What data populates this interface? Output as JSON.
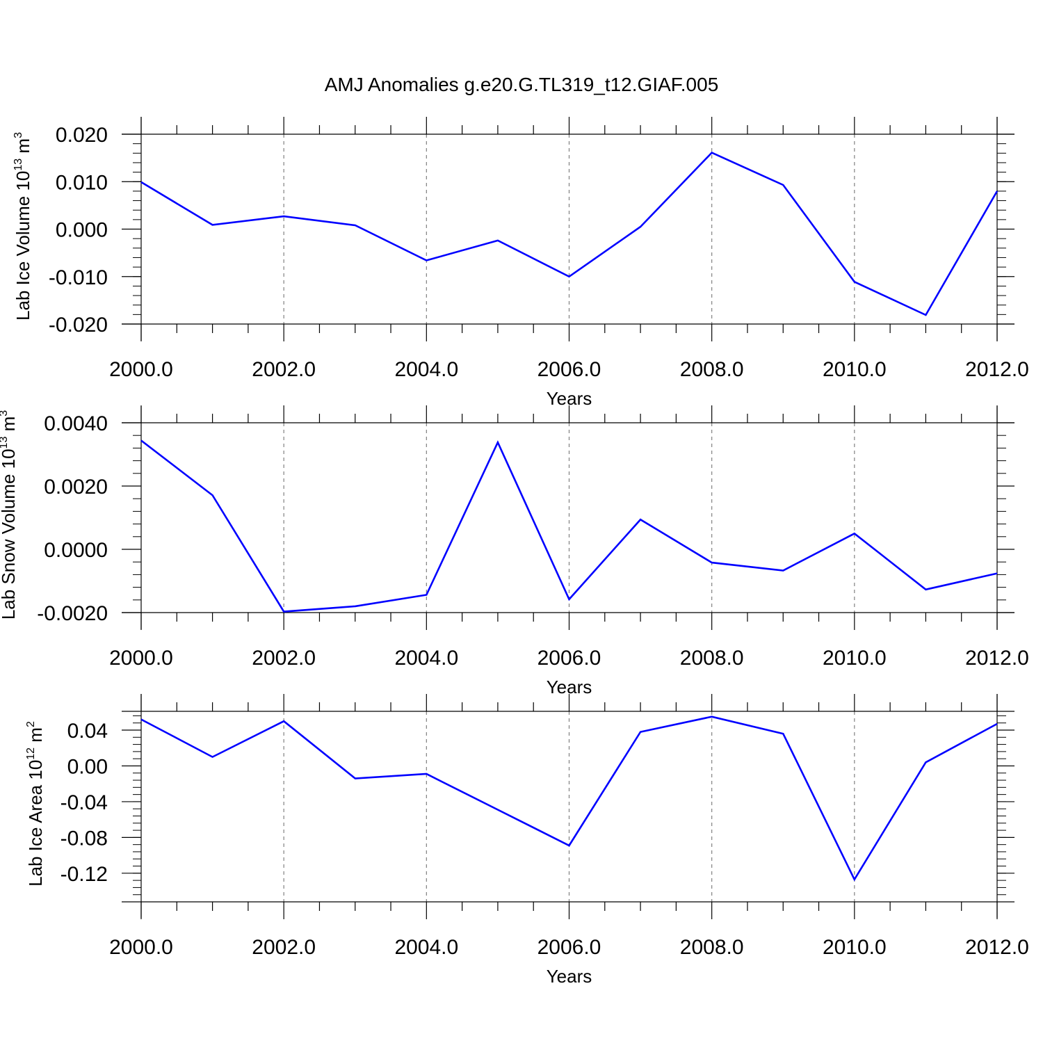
{
  "title": "AMJ Anomalies g.e20.G.TL319_t12.GIAF.005",
  "colors": {
    "series": "#0000ff",
    "axis": "#000000",
    "grid": "#808080"
  },
  "chart_data": [
    {
      "type": "line",
      "xlabel": "Years",
      "ylabel_text": "Lab Ice Volume 10",
      "ylabel_exp": "13",
      "ylabel_unit": " m",
      "ylabel_unit_exp": "3",
      "xlim": [
        2000,
        2012
      ],
      "ylim": [
        -0.02,
        0.02
      ],
      "x_ticks": [
        "2000.0",
        "2002.0",
        "2004.0",
        "2006.0",
        "2008.0",
        "2010.0",
        "2012.0"
      ],
      "y_ticks": [
        0.02,
        0.01,
        0.0,
        -0.01,
        -0.02
      ],
      "y_tick_labels": [
        "0.020",
        "0.010",
        "0.000",
        "-0.010",
        "-0.020"
      ],
      "grid": "vertical dashed",
      "x": [
        2000,
        2001,
        2002,
        2003,
        2004,
        2005,
        2006,
        2007,
        2008,
        2009,
        2010,
        2011,
        2012
      ],
      "values": [
        0.0099,
        0.0009,
        0.0027,
        0.0008,
        -0.0066,
        -0.0024,
        -0.01,
        0.0005,
        0.0161,
        0.0093,
        -0.0111,
        -0.0181,
        0.008
      ]
    },
    {
      "type": "line",
      "xlabel": "Years",
      "ylabel_text": "Lab Snow Volume 10",
      "ylabel_exp": "13",
      "ylabel_unit": " m",
      "ylabel_unit_exp": "3",
      "xlim": [
        2000,
        2012
      ],
      "ylim": [
        -0.002,
        0.004
      ],
      "x_ticks": [
        "2000.0",
        "2002.0",
        "2004.0",
        "2006.0",
        "2008.0",
        "2010.0",
        "2012.0"
      ],
      "y_ticks": [
        0.004,
        0.002,
        0.0,
        -0.002
      ],
      "y_tick_labels": [
        "0.0040",
        "0.0020",
        "0.0000",
        "-0.0020"
      ],
      "grid": "vertical dashed",
      "x": [
        2000,
        2001,
        2002,
        2003,
        2004,
        2005,
        2006,
        2007,
        2008,
        2009,
        2010,
        2011,
        2012
      ],
      "values": [
        0.00344,
        0.00171,
        -0.00197,
        -0.0018,
        -0.00144,
        0.00338,
        -0.00158,
        0.00094,
        -0.00042,
        -0.00067,
        0.0005,
        -0.00127,
        -0.00076
      ]
    },
    {
      "type": "line",
      "xlabel": "Years",
      "ylabel_text": "Lab Ice Area 10",
      "ylabel_exp": "12",
      "ylabel_unit": " m",
      "ylabel_unit_exp": "2",
      "xlim": [
        2000,
        2012
      ],
      "ylim": [
        -0.152,
        0.061
      ],
      "x_ticks": [
        "2000.0",
        "2002.0",
        "2004.0",
        "2006.0",
        "2008.0",
        "2010.0",
        "2012.0"
      ],
      "y_ticks": [
        0.04,
        0.0,
        -0.04,
        -0.08,
        -0.12
      ],
      "y_tick_labels": [
        "0.04",
        "0.00",
        "-0.04",
        "-0.08",
        "-0.12"
      ],
      "grid": "vertical dashed",
      "x": [
        2000,
        2001,
        2002,
        2003,
        2004,
        2005,
        2006,
        2007,
        2008,
        2009,
        2010,
        2011,
        2012
      ],
      "values": [
        0.052,
        0.01,
        0.05,
        -0.014,
        -0.009,
        -0.049,
        -0.089,
        0.038,
        0.055,
        0.036,
        -0.127,
        0.004,
        0.047
      ]
    }
  ]
}
